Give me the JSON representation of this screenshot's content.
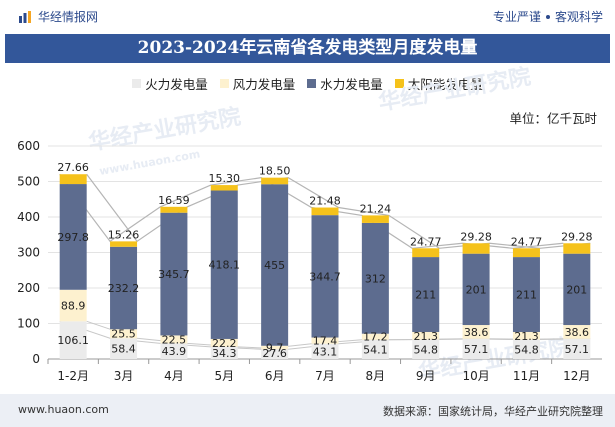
{
  "header": {
    "brand": "华经情报网",
    "slogan_left": "专业严谨",
    "slogan_right": "客观科学"
  },
  "title": "2023-2024年云南省各发电类型月度发电量",
  "unit_label": "单位：亿千瓦时",
  "watermark": {
    "text": "华经产业研究院",
    "url": "www.huaon.com"
  },
  "footer": {
    "url": "www.huaon.com",
    "source": "数据来源：国家统计局，华经产业研究院整理"
  },
  "colors": {
    "thermal": "#ebebeb",
    "wind": "#fdf1cf",
    "hydro": "#5d6c8f",
    "solar": "#f5c21b",
    "title_bg": "#33579a"
  },
  "chart_data": {
    "type": "bar",
    "stacked": true,
    "categories": [
      "1-2月",
      "3月",
      "4月",
      "5月",
      "6月",
      "7月",
      "8月",
      "9月",
      "10月",
      "11月",
      "12月"
    ],
    "series": [
      {
        "name": "火力发电量",
        "key": "thermal",
        "values": [
          106.1,
          58.4,
          43.9,
          34.3,
          27.6,
          43.1,
          54.1,
          54.8,
          57.1,
          54.8,
          57.1
        ]
      },
      {
        "name": "风力发电量",
        "key": "wind",
        "values": [
          88.9,
          25.5,
          22.5,
          22.2,
          9.7,
          17.4,
          17.2,
          21.3,
          38.6,
          21.3,
          38.6
        ]
      },
      {
        "name": "水力发电量",
        "key": "hydro",
        "values": [
          297.8,
          232.2,
          345.7,
          418.1,
          455,
          344.7,
          312,
          211,
          201,
          211,
          201
        ]
      },
      {
        "name": "太阳能发电量",
        "key": "solar",
        "values": [
          27.66,
          15.26,
          16.59,
          15.3,
          18.5,
          21.48,
          21.24,
          24.77,
          29.28,
          24.77,
          29.28
        ]
      }
    ],
    "solar_labels": [
      "27.66",
      "15.26",
      "16.59",
      "15.30",
      "18.50",
      "21.48",
      "21.24",
      "24.77",
      "29.28",
      "24.77",
      "29.28"
    ],
    "ylim": [
      0,
      600
    ],
    "yticks": [
      0,
      100,
      200,
      300,
      400,
      500,
      600
    ],
    "ylabel": "亿千瓦时"
  }
}
